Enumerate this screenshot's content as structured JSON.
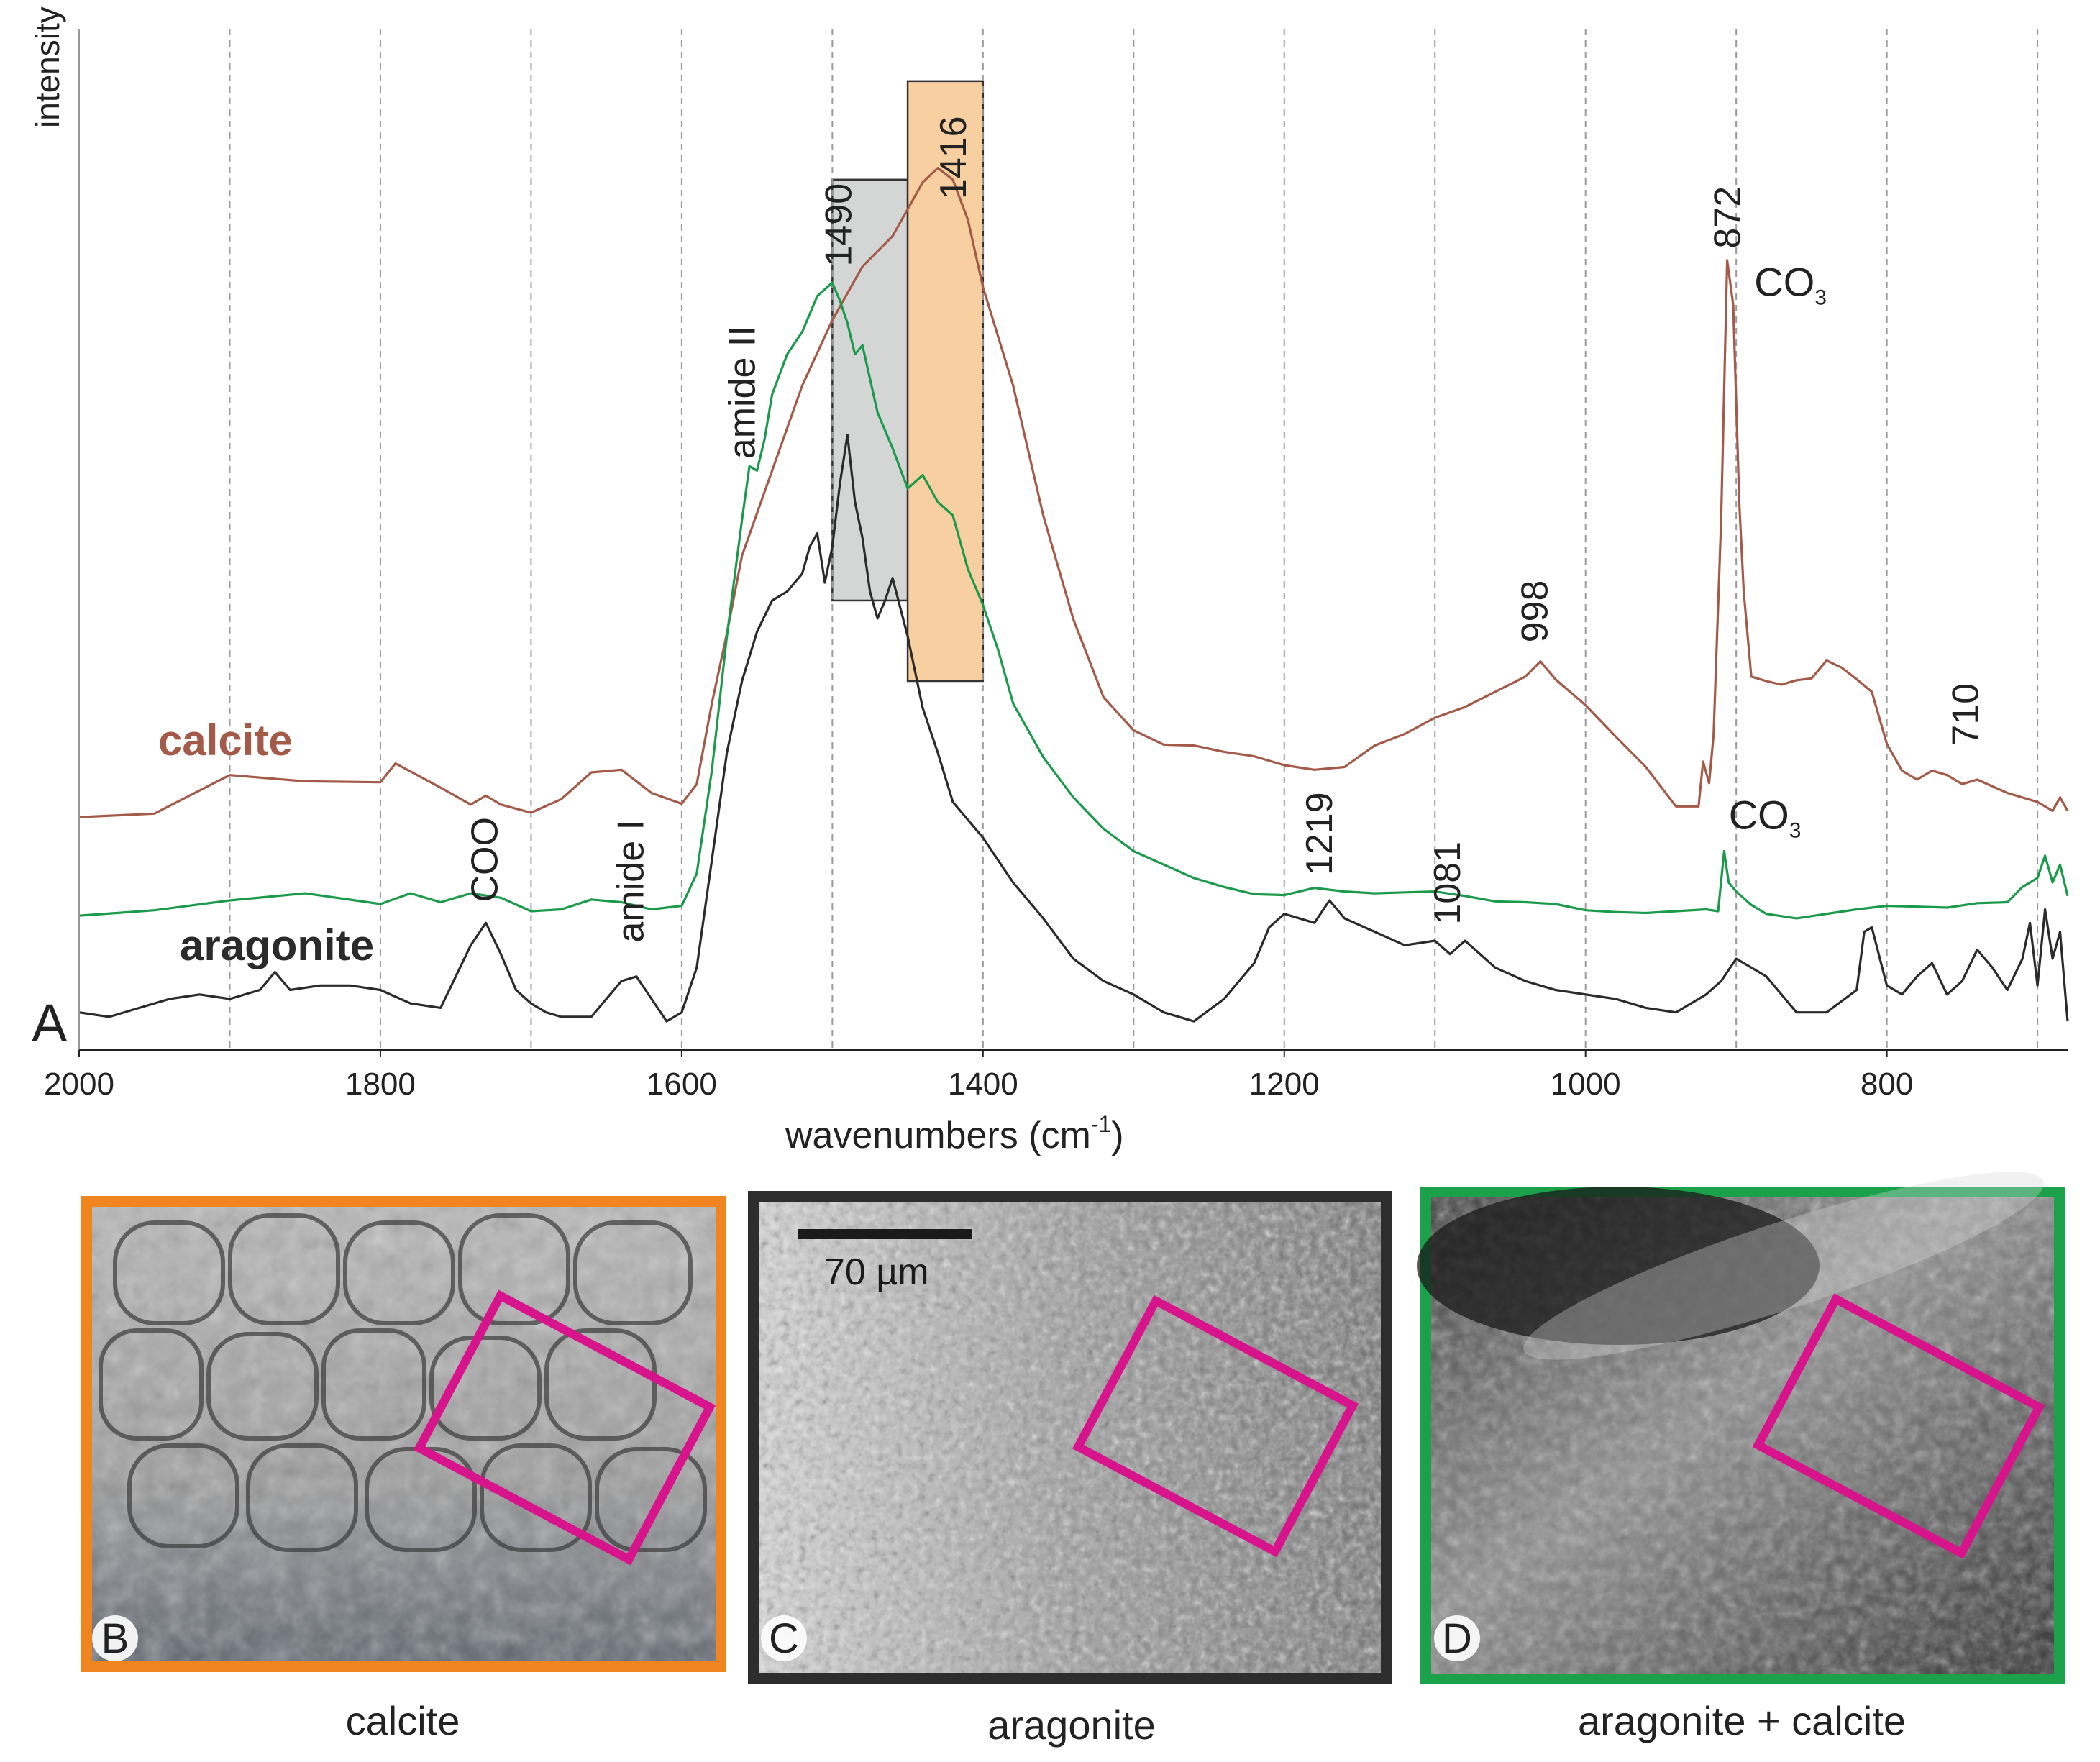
{
  "chart_data": {
    "type": "line",
    "panel_letter": "A",
    "ylabel": "intensity",
    "xlabel": "wavenumbers (cm",
    "xlabel_sup": "-1",
    "xlabel_close": ")",
    "xlim": [
      2000,
      680
    ],
    "x_reversed": true,
    "xticks": [
      2000,
      1800,
      1600,
      1400,
      1200,
      1000,
      800
    ],
    "xtick_labels": [
      "2000",
      "1800",
      "1600",
      "1400",
      "1200",
      "1000",
      "800"
    ],
    "grid_x": [
      1900,
      1800,
      1700,
      1600,
      1500,
      1400,
      1300,
      1200,
      1100,
      1000,
      900,
      800,
      700
    ],
    "ylim": [
      0,
      100
    ],
    "series": [
      {
        "name": "calcite",
        "color": "#a45a48",
        "x": [
          2000,
          1950,
          1900,
          1850,
          1800,
          1790,
          1760,
          1740,
          1730,
          1720,
          1700,
          1680,
          1660,
          1640,
          1620,
          1600,
          1590,
          1580,
          1570,
          1560,
          1540,
          1520,
          1500,
          1480,
          1460,
          1450,
          1440,
          1430,
          1420,
          1410,
          1400,
          1380,
          1360,
          1340,
          1320,
          1300,
          1280,
          1260,
          1240,
          1220,
          1200,
          1180,
          1160,
          1140,
          1120,
          1100,
          1080,
          1060,
          1040,
          1030,
          1020,
          1000,
          980,
          960,
          940,
          925,
          922,
          918,
          915,
          910,
          906,
          902,
          898,
          895,
          890,
          880,
          870,
          860,
          850,
          840,
          830,
          820,
          810,
          800,
          790,
          780,
          770,
          760,
          750,
          740,
          720,
          700,
          690,
          685,
          680
        ],
        "values": [
          24.8,
          25.2,
          29.5,
          28.8,
          28.7,
          30.8,
          28.1,
          26.2,
          27.2,
          26.2,
          25.3,
          26.8,
          29.8,
          30.1,
          27.5,
          26.3,
          28.5,
          37.5,
          45.3,
          54.0,
          63.5,
          73.0,
          80.3,
          86.3,
          89.7,
          92.7,
          95.7,
          97.3,
          96.0,
          91.5,
          84.0,
          73.0,
          58.5,
          46.9,
          38.2,
          34.5,
          32.9,
          32.8,
          32.1,
          31.6,
          30.6,
          30.1,
          30.4,
          32.8,
          34.1,
          35.9,
          37.1,
          38.8,
          40.5,
          42.2,
          40.2,
          37.3,
          33.8,
          30.4,
          26.0,
          26.0,
          31.0,
          28.6,
          34.0,
          58.0,
          87.0,
          82.0,
          60.0,
          50.0,
          40.5,
          40.0,
          39.6,
          40.1,
          40.3,
          42.3,
          41.5,
          40.2,
          38.8,
          33.0,
          30.0,
          29.0,
          30.0,
          29.5,
          28.5,
          29.0,
          27.5,
          26.5,
          25.5,
          27.0,
          25.5
        ]
      },
      {
        "name": "",
        "color": "#1c9a4c",
        "x": [
          2000,
          1950,
          1900,
          1850,
          1800,
          1780,
          1760,
          1740,
          1720,
          1700,
          1680,
          1660,
          1640,
          1620,
          1600,
          1590,
          1580,
          1570,
          1560,
          1555,
          1550,
          1545,
          1540,
          1530,
          1520,
          1510,
          1500,
          1495,
          1490,
          1485,
          1480,
          1470,
          1460,
          1450,
          1440,
          1430,
          1420,
          1410,
          1400,
          1390,
          1380,
          1360,
          1340,
          1320,
          1300,
          1280,
          1260,
          1240,
          1220,
          1200,
          1180,
          1160,
          1140,
          1120,
          1100,
          1080,
          1060,
          1040,
          1020,
          1000,
          980,
          960,
          940,
          920,
          912,
          908,
          905,
          900,
          890,
          880,
          860,
          840,
          820,
          800,
          780,
          760,
          740,
          720,
          710,
          700,
          695,
          690,
          685,
          680
        ],
        "values": [
          13.8,
          14.4,
          15.5,
          16.3,
          15.1,
          16.3,
          15.3,
          16.3,
          15.8,
          14.3,
          14.5,
          15.6,
          15.3,
          14.5,
          14.9,
          18.5,
          30.0,
          45.0,
          58.0,
          64.0,
          63.5,
          67.0,
          72.0,
          76.5,
          79.0,
          83.0,
          84.5,
          82.5,
          80.0,
          76.5,
          77.5,
          70.0,
          66.0,
          61.5,
          63.0,
          60.0,
          58.5,
          52.5,
          48.5,
          43.5,
          37.5,
          31.5,
          27.0,
          23.5,
          21.0,
          19.5,
          18.0,
          17.0,
          16.2,
          16.1,
          16.9,
          16.5,
          16.3,
          16.4,
          16.5,
          16.0,
          15.4,
          15.3,
          15.1,
          14.4,
          14.2,
          14.1,
          14.3,
          14.5,
          14.3,
          21.0,
          17.5,
          16.5,
          15.0,
          14.0,
          13.5,
          14.0,
          14.5,
          14.9,
          14.8,
          14.7,
          15.2,
          15.3,
          17.0,
          18.0,
          20.5,
          17.5,
          19.5,
          16.0
        ]
      },
      {
        "name": "aragonite",
        "color": "#2b2b2b",
        "x": [
          2000,
          1980,
          1960,
          1940,
          1920,
          1900,
          1880,
          1870,
          1860,
          1840,
          1820,
          1800,
          1780,
          1760,
          1750,
          1740,
          1730,
          1720,
          1710,
          1700,
          1690,
          1680,
          1660,
          1650,
          1640,
          1630,
          1620,
          1610,
          1600,
          1590,
          1580,
          1570,
          1560,
          1550,
          1540,
          1530,
          1520,
          1515,
          1510,
          1505,
          1500,
          1495,
          1490,
          1485,
          1480,
          1475,
          1470,
          1465,
          1460,
          1450,
          1440,
          1430,
          1420,
          1410,
          1400,
          1380,
          1360,
          1340,
          1320,
          1300,
          1280,
          1260,
          1240,
          1220,
          1210,
          1200,
          1180,
          1170,
          1160,
          1140,
          1120,
          1100,
          1090,
          1080,
          1060,
          1040,
          1020,
          1000,
          980,
          960,
          940,
          920,
          910,
          900,
          880,
          860,
          840,
          820,
          815,
          810,
          800,
          790,
          780,
          770,
          760,
          750,
          740,
          730,
          720,
          710,
          705,
          700,
          695,
          690,
          685,
          680
        ],
        "values": [
          3.0,
          2.5,
          3.5,
          4.5,
          5.0,
          4.5,
          5.5,
          7.5,
          5.5,
          6.0,
          6.0,
          5.5,
          4.0,
          3.5,
          7.0,
          10.5,
          13.0,
          9.5,
          5.5,
          4.0,
          3.0,
          2.5,
          2.5,
          4.5,
          6.5,
          7.0,
          4.5,
          2.0,
          3.0,
          8.0,
          20.0,
          32.0,
          40.0,
          45.5,
          49.0,
          50.0,
          52.0,
          55.0,
          56.5,
          51.0,
          55.0,
          62.0,
          67.5,
          60.0,
          56.0,
          50.0,
          47.0,
          49.0,
          51.5,
          45.0,
          37.0,
          32.0,
          26.5,
          24.5,
          22.5,
          17.5,
          13.5,
          9.0,
          6.5,
          5.0,
          3.0,
          2.0,
          4.5,
          8.5,
          12.5,
          14.0,
          13.0,
          15.5,
          13.5,
          12.0,
          10.5,
          11.0,
          9.5,
          11.0,
          8.0,
          6.5,
          5.5,
          5.0,
          4.5,
          3.5,
          3.0,
          5.0,
          6.5,
          9.0,
          7.0,
          3.0,
          3.0,
          5.5,
          12.0,
          12.5,
          6.0,
          5.0,
          7.0,
          8.5,
          5.0,
          6.5,
          10.0,
          8.0,
          5.5,
          9.0,
          13.0,
          6.0,
          14.5,
          9.0,
          12.0,
          2.0
        ]
      }
    ],
    "series_labels": [
      {
        "text": "calcite",
        "color": "#a45a48"
      },
      {
        "text": "aragonite",
        "color": "#2b2b2b"
      }
    ],
    "bands": [
      {
        "from": 1500,
        "to": 1450,
        "ymin": 49,
        "ymax": 96,
        "fill": "#d4d6d6"
      },
      {
        "from": 1450,
        "to": 1400,
        "ymin": 40,
        "ymax": 107,
        "fill": "#f8cfa0"
      }
    ],
    "peak_labels": [
      {
        "text": "amide II",
        "x": 1560,
        "y": 64.0,
        "rotate": true
      },
      {
        "text": "1490",
        "x": 1496,
        "y": 85.5,
        "rotate": true
      },
      {
        "text": "1416",
        "x": 1420,
        "y": 93.0,
        "rotate": true
      },
      {
        "text": "COO",
        "x": 1731,
        "y": 14.5,
        "rotate": true
      },
      {
        "text": "amide I",
        "x": 1634,
        "y": 10.0,
        "rotate": true
      },
      {
        "text": "1219",
        "x": 1177,
        "y": 17.5,
        "rotate": true
      },
      {
        "text": "1081",
        "x": 1092,
        "y": 12.0,
        "rotate": true
      },
      {
        "text": "998",
        "x": 1034,
        "y": 43.5,
        "rotate": true
      },
      {
        "text": "872",
        "x": 906,
        "y": 87.5,
        "rotate": true
      },
      {
        "text": "710",
        "x": 748,
        "y": 32.0,
        "rotate": true
      }
    ],
    "chem_labels": [
      {
        "text": "CO",
        "sub": "3",
        "x": 888,
        "y": 83.0
      },
      {
        "text": "CO",
        "sub": "3",
        "x": 905,
        "y": 23.5
      }
    ]
  },
  "panels": [
    {
      "letter": "B",
      "caption": "calcite",
      "frame_color": "#f0841e"
    },
    {
      "letter": "C",
      "caption": "aragonite",
      "frame_color": "#2d2d2d",
      "scale_bar": "70 µm"
    },
    {
      "letter": "D",
      "caption": "aragonite + calcite",
      "frame_color": "#1aa14a"
    }
  ]
}
